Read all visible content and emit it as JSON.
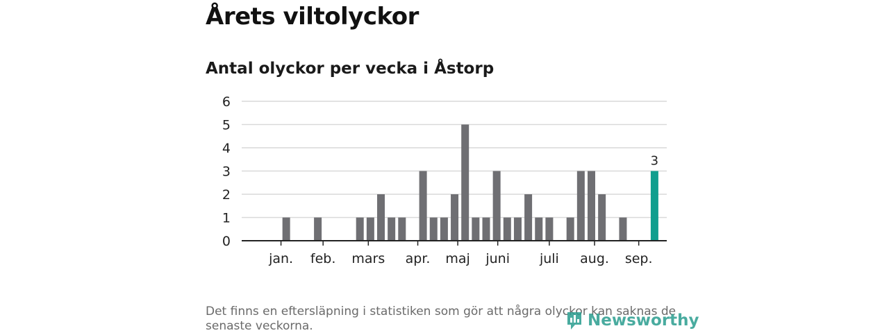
{
  "title": "Årets viltolyckor",
  "subtitle": "Antal olyckor per vecka i Åstorp",
  "footnote": "Det finns en eftersläpning i statistiken som gör att några olyckor kan saknas de senaste veckorna.",
  "logo": {
    "text": "Newsworthy",
    "icon": "newsworthy-logo-icon",
    "color": "#2a9d8f"
  },
  "chart_data": {
    "type": "bar",
    "x": [
      1,
      2,
      3,
      4,
      5,
      6,
      7,
      8,
      9,
      10,
      11,
      12,
      13,
      14,
      15,
      16,
      17,
      18,
      19,
      20,
      21,
      22,
      23,
      24,
      25,
      26,
      27,
      28,
      29,
      30,
      31,
      32,
      33,
      34,
      35,
      36,
      37,
      38
    ],
    "values": [
      0,
      1,
      0,
      0,
      1,
      0,
      0,
      0,
      1,
      1,
      2,
      1,
      1,
      0,
      3,
      1,
      1,
      2,
      5,
      1,
      1,
      3,
      1,
      1,
      2,
      1,
      1,
      0,
      1,
      3,
      3,
      2,
      0,
      1,
      0,
      0,
      3,
      0
    ],
    "highlight_index": 36,
    "highlight_label": "3",
    "ylim": [
      0,
      6
    ],
    "yticks": [
      "0",
      "1",
      "2",
      "3",
      "4",
      "5",
      "6"
    ],
    "xticks": [
      {
        "label": "jan.",
        "week": 1.5
      },
      {
        "label": "feb.",
        "week": 5.5
      },
      {
        "label": "mars",
        "week": 9.8
      },
      {
        "label": "apr.",
        "week": 14.5
      },
      {
        "label": "maj",
        "week": 18.3
      },
      {
        "label": "juni",
        "week": 22.1
      },
      {
        "label": "juli",
        "week": 27.0
      },
      {
        "label": "aug.",
        "week": 31.3
      },
      {
        "label": "sep.",
        "week": 35.5
      }
    ],
    "colors": {
      "bar": "#6f6f73",
      "highlight": "#109e8e",
      "grid": "#d9d9d9",
      "axis": "#222222"
    },
    "grid": true,
    "legend": "none"
  }
}
